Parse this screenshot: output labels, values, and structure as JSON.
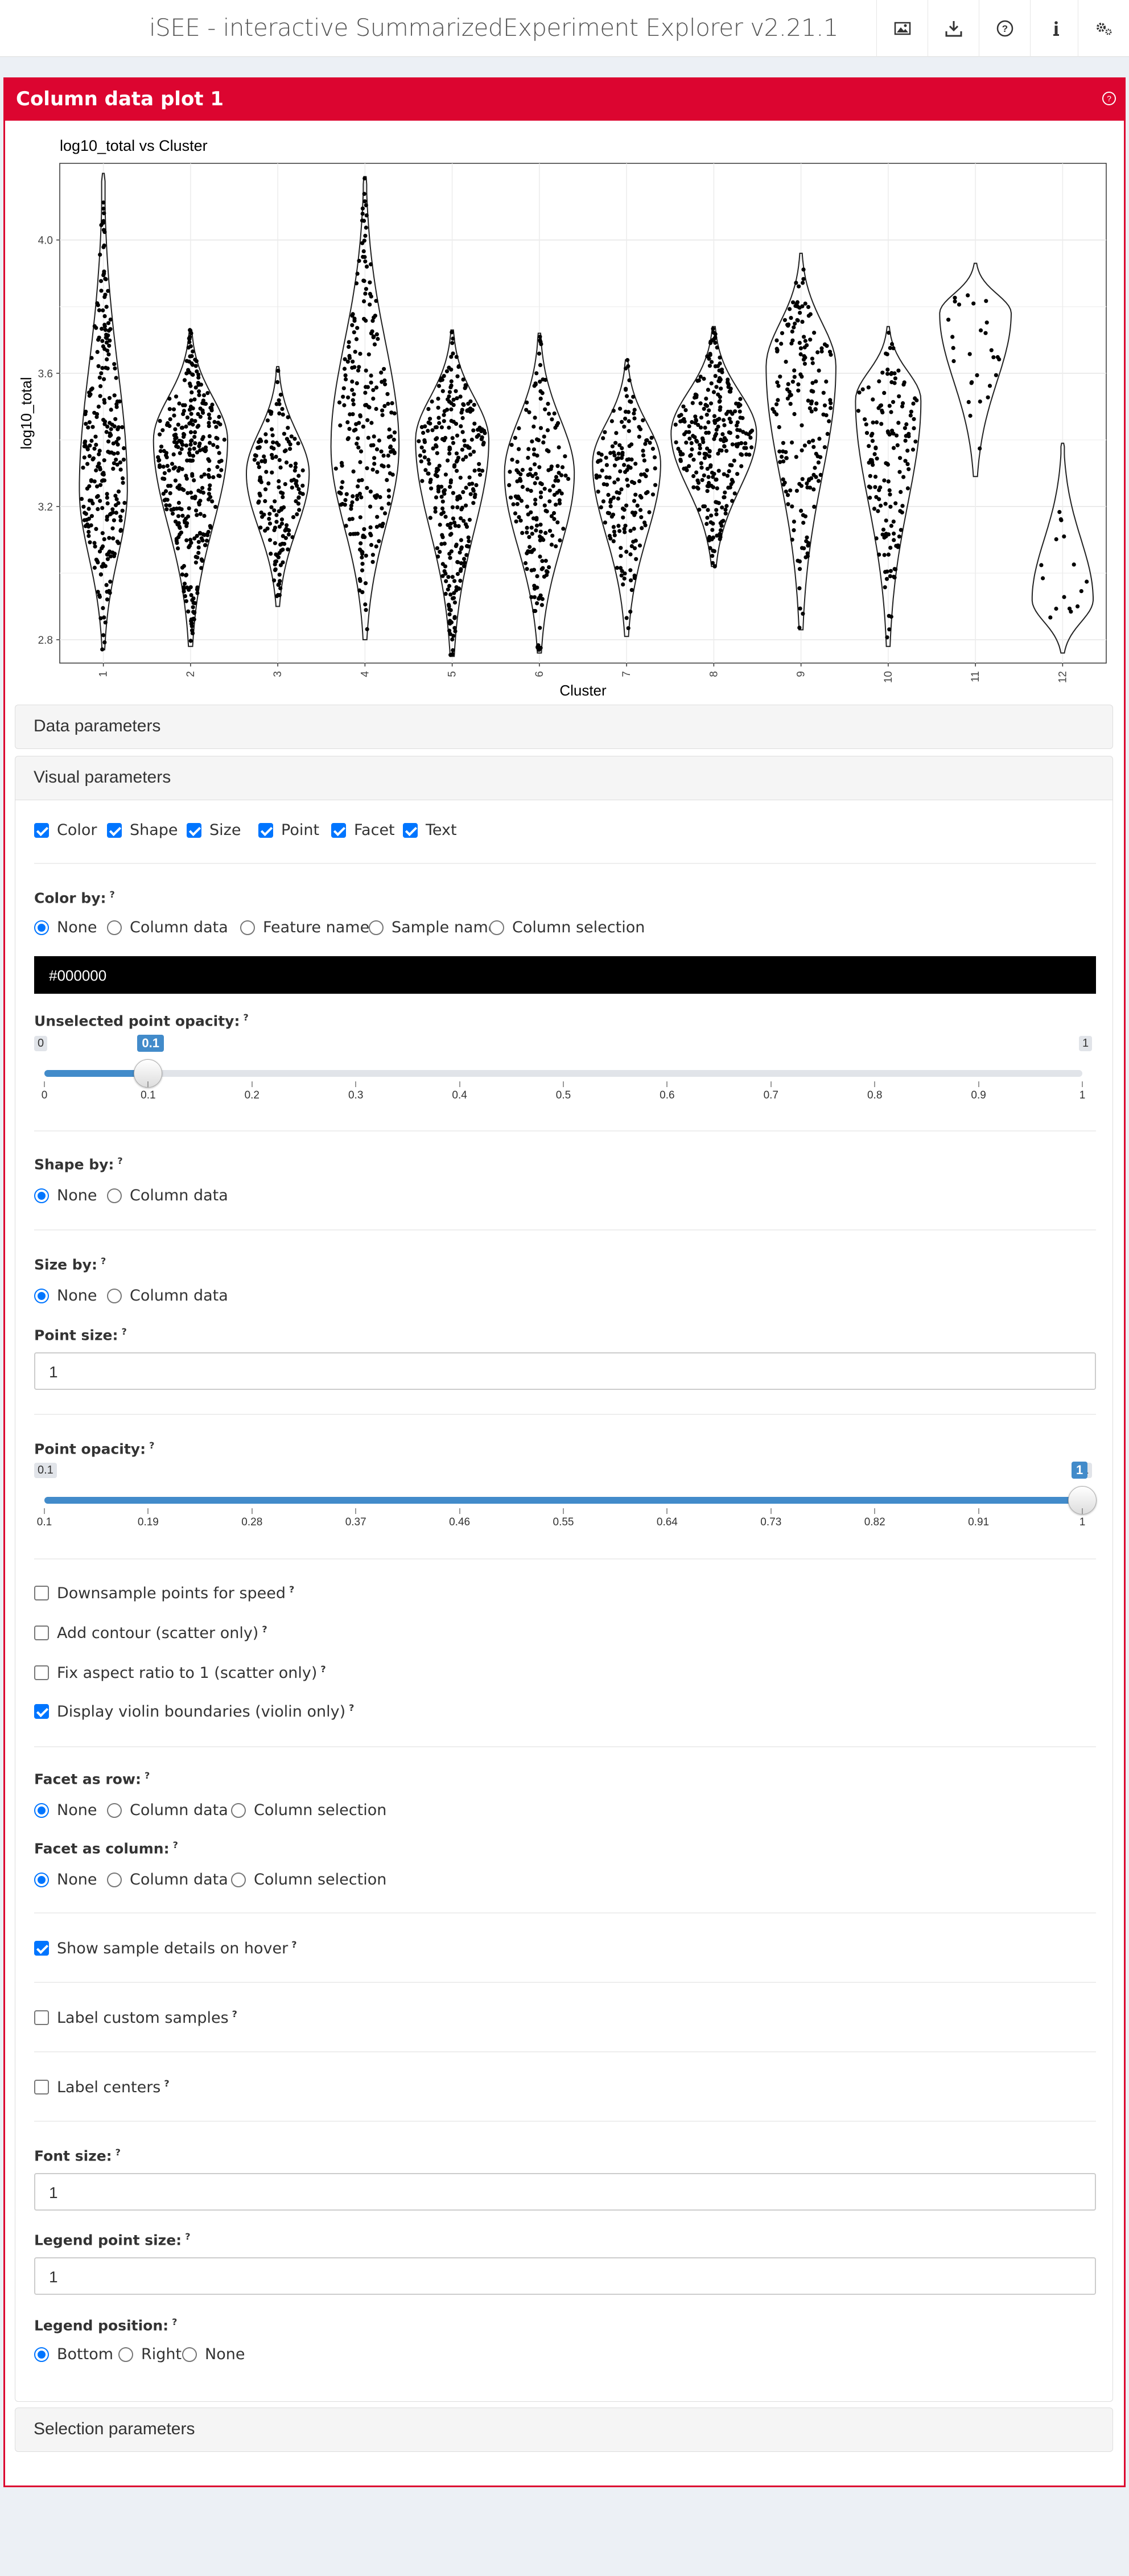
{
  "app": {
    "title": "iSEE - interactive SummarizedExperiment Explorer v2.21.1"
  },
  "toolbar": {
    "icons": [
      "image-icon",
      "download-icon",
      "question-circle-icon",
      "info-icon",
      "cogs-icon"
    ]
  },
  "panel": {
    "title": "Column data plot 1"
  },
  "colors": {
    "header": "#dc0530",
    "accent": "#0075ff",
    "slider": "#428bca"
  },
  "chart_data": {
    "type": "violin",
    "title": "log10_total vs Cluster",
    "xlabel": "Cluster",
    "ylabel": "log10_total",
    "categories": [
      "1",
      "2",
      "3",
      "4",
      "5",
      "6",
      "7",
      "8",
      "9",
      "10",
      "11",
      "12"
    ],
    "y_ticks": [
      "2.8",
      "3.2",
      "3.6",
      "4.0"
    ],
    "ylim": [
      2.73,
      4.23
    ],
    "clusters": [
      {
        "name": "1",
        "min": 2.77,
        "max": 4.2,
        "mode": 3.25,
        "n": 260,
        "width": 0.55
      },
      {
        "name": "2",
        "min": 2.78,
        "max": 3.73,
        "mode": 3.4,
        "n": 330,
        "width": 0.85
      },
      {
        "name": "3",
        "min": 2.9,
        "max": 3.62,
        "mode": 3.3,
        "n": 160,
        "width": 0.72
      },
      {
        "name": "4",
        "min": 2.8,
        "max": 4.19,
        "mode": 3.38,
        "n": 240,
        "width": 0.78
      },
      {
        "name": "5",
        "min": 2.75,
        "max": 3.73,
        "mode": 3.4,
        "n": 290,
        "width": 0.84
      },
      {
        "name": "6",
        "min": 2.76,
        "max": 3.72,
        "mode": 3.3,
        "n": 190,
        "width": 0.8
      },
      {
        "name": "7",
        "min": 2.81,
        "max": 3.64,
        "mode": 3.33,
        "n": 170,
        "width": 0.78
      },
      {
        "name": "8",
        "min": 3.02,
        "max": 3.74,
        "mode": 3.42,
        "n": 280,
        "width": 0.98
      },
      {
        "name": "9",
        "min": 2.83,
        "max": 3.96,
        "mode": 3.62,
        "n": 180,
        "width": 0.8
      },
      {
        "name": "10",
        "min": 2.78,
        "max": 3.74,
        "mode": 3.52,
        "n": 150,
        "width": 0.75
      },
      {
        "name": "11",
        "min": 3.29,
        "max": 3.93,
        "mode": 3.78,
        "n": 28,
        "width": 0.82
      },
      {
        "name": "12",
        "min": 2.76,
        "max": 3.39,
        "mode": 2.92,
        "n": 16,
        "width": 0.7
      }
    ]
  },
  "sections": {
    "data_params": "Data parameters",
    "visual_params": "Visual parameters",
    "selection_params": "Selection parameters"
  },
  "visual": {
    "toggles": [
      {
        "label": "Color",
        "checked": true
      },
      {
        "label": "Shape",
        "checked": true
      },
      {
        "label": "Size",
        "checked": true
      },
      {
        "label": "Point",
        "checked": true
      },
      {
        "label": "Facet",
        "checked": true
      },
      {
        "label": "Text",
        "checked": true
      }
    ],
    "color_by": {
      "label": "Color by:",
      "options": [
        "None",
        "Column data",
        "Feature name",
        "Sample name",
        "Column selection"
      ],
      "selected": "None"
    },
    "color_value": "#000000",
    "unselected_opacity": {
      "label": "Unselected point opacity:",
      "min": "0",
      "max": "1",
      "value": "0.1",
      "ticks": [
        "0",
        "0.1",
        "0.2",
        "0.3",
        "0.4",
        "0.5",
        "0.6",
        "0.7",
        "0.8",
        "0.9",
        "1"
      ],
      "fraction": 0.1
    },
    "shape_by": {
      "label": "Shape by:",
      "options": [
        "None",
        "Column data"
      ],
      "selected": "None"
    },
    "size_by": {
      "label": "Size by:",
      "options": [
        "None",
        "Column data"
      ],
      "selected": "None"
    },
    "point_size": {
      "label": "Point size:",
      "value": "1"
    },
    "point_opacity": {
      "label": "Point opacity:",
      "min": "0.1",
      "max": "1",
      "value": "1",
      "ticks": [
        "0.1",
        "0.19",
        "0.28",
        "0.37",
        "0.46",
        "0.55",
        "0.64",
        "0.73",
        "0.82",
        "0.91",
        "1"
      ],
      "fraction": 1
    },
    "checks": [
      {
        "label": "Downsample points for speed",
        "checked": false
      },
      {
        "label": "Add contour (scatter only)",
        "checked": false
      },
      {
        "label": "Fix aspect ratio to 1 (scatter only)",
        "checked": false
      },
      {
        "label": "Display violin boundaries (violin only)",
        "checked": true
      }
    ],
    "facet_row": {
      "label": "Facet as row:",
      "options": [
        "None",
        "Column data",
        "Column selection"
      ],
      "selected": "None"
    },
    "facet_col": {
      "label": "Facet as column:",
      "options": [
        "None",
        "Column data",
        "Column selection"
      ],
      "selected": "None"
    },
    "hover": {
      "label": "Show sample details on hover",
      "checked": true
    },
    "label_custom": {
      "label": "Label custom samples",
      "checked": false
    },
    "label_centers": {
      "label": "Label centers",
      "checked": false
    },
    "font_size": {
      "label": "Font size:",
      "value": "1"
    },
    "legend_point_size": {
      "label": "Legend point size:",
      "value": "1"
    },
    "legend_position": {
      "label": "Legend position:",
      "options": [
        "Bottom",
        "Right",
        "None"
      ],
      "selected": "Bottom"
    },
    "help_mark": "?"
  }
}
